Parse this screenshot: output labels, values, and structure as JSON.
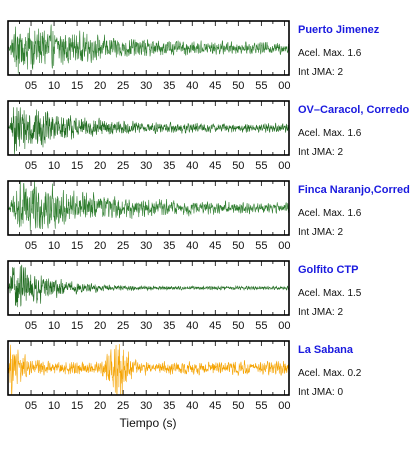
{
  "chart_data": {
    "type": "line",
    "xlabel": "Tiempo (s)",
    "xlim": [
      0,
      61
    ],
    "xticks": [
      "05",
      "10",
      "15",
      "20",
      "25",
      "30",
      "35",
      "40",
      "45",
      "50",
      "55",
      "00"
    ],
    "panels": [
      {
        "name": "Puerto Jimenez",
        "acel_label": "Acel. Max. 1.6",
        "jma_label": "Int JMA: 2",
        "acel_max": 1.6,
        "jma": 2,
        "color": "#2e7d2e",
        "envelope": {
          "onset": 0.2,
          "peak_time": 2.0,
          "decay": 14,
          "floor": 0.18,
          "burst_time": 0,
          "burst_amp": 0
        }
      },
      {
        "name": "OV–Caracol, Corredores",
        "acel_label": "Acel. Max. 1.6",
        "jma_label": "Int JMA: 2",
        "acel_max": 1.6,
        "jma": 2,
        "color": "#1f6b1f",
        "envelope": {
          "onset": 0.1,
          "peak_time": 1.5,
          "decay": 10,
          "floor": 0.15,
          "burst_time": 0,
          "burst_amp": 0
        }
      },
      {
        "name": "Finca Naranjo,Corredores",
        "acel_label": "Acel. Max. 1.6",
        "jma_label": "Int JMA: 2",
        "acel_max": 1.6,
        "jma": 2,
        "color": "#2e7d2e",
        "envelope": {
          "onset": 0.1,
          "peak_time": 2.5,
          "decay": 16,
          "floor": 0.15,
          "burst_time": 0,
          "burst_amp": 0
        }
      },
      {
        "name": "Golfito CTP",
        "acel_label": "Acel. Max. 1.5",
        "jma_label": "Int JMA: 2",
        "acel_max": 1.5,
        "jma": 2,
        "color": "#1f6b1f",
        "envelope": {
          "onset": 0.1,
          "peak_time": 1.2,
          "decay": 7,
          "floor": 0.06,
          "burst_time": 0,
          "burst_amp": 0
        }
      },
      {
        "name": "La Sabana",
        "acel_label": "Acel. Max. 0.2",
        "jma_label": "Int JMA: 0",
        "acel_max": 0.2,
        "jma": 0,
        "color": "#f5a300",
        "envelope": {
          "onset": 0.0,
          "peak_time": 0.5,
          "decay": 2,
          "floor": 0.22,
          "burst_time": 24,
          "burst_amp": 1.0
        }
      }
    ]
  }
}
